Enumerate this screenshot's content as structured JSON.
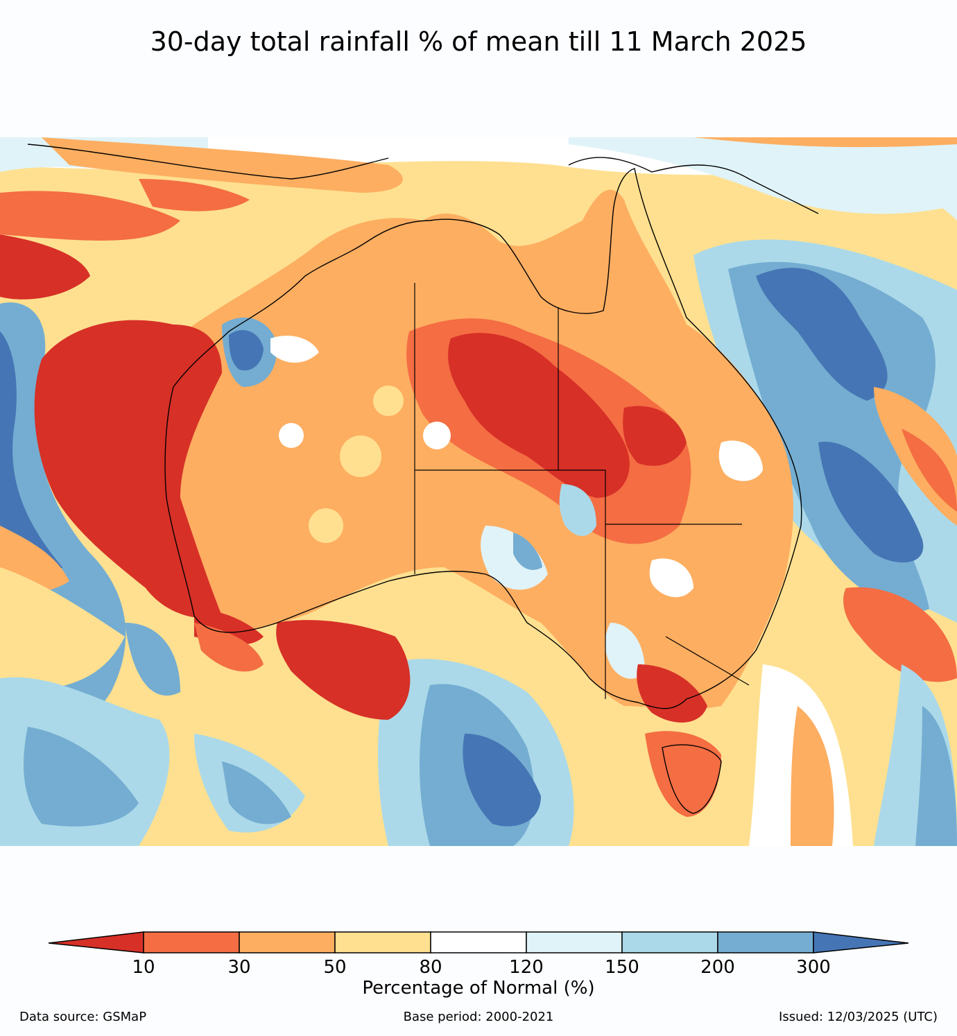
{
  "title": "30-day total rainfall % of mean till 11 March 2025",
  "legend": {
    "label": "Percentage of Normal (%)",
    "ticks": [
      "10",
      "30",
      "50",
      "80",
      "120",
      "150",
      "200",
      "300"
    ],
    "colors": [
      "#d73027",
      "#f46d43",
      "#fdae61",
      "#fee090",
      "#ffffff",
      "#e0f3f8",
      "#abd9e9",
      "#74add1",
      "#4575b4"
    ]
  },
  "footer": {
    "source": "Data source: GSMaP",
    "base_period": "Base period: 2000-2021",
    "issued": "Issued: 12/03/2025 (UTC)"
  }
}
